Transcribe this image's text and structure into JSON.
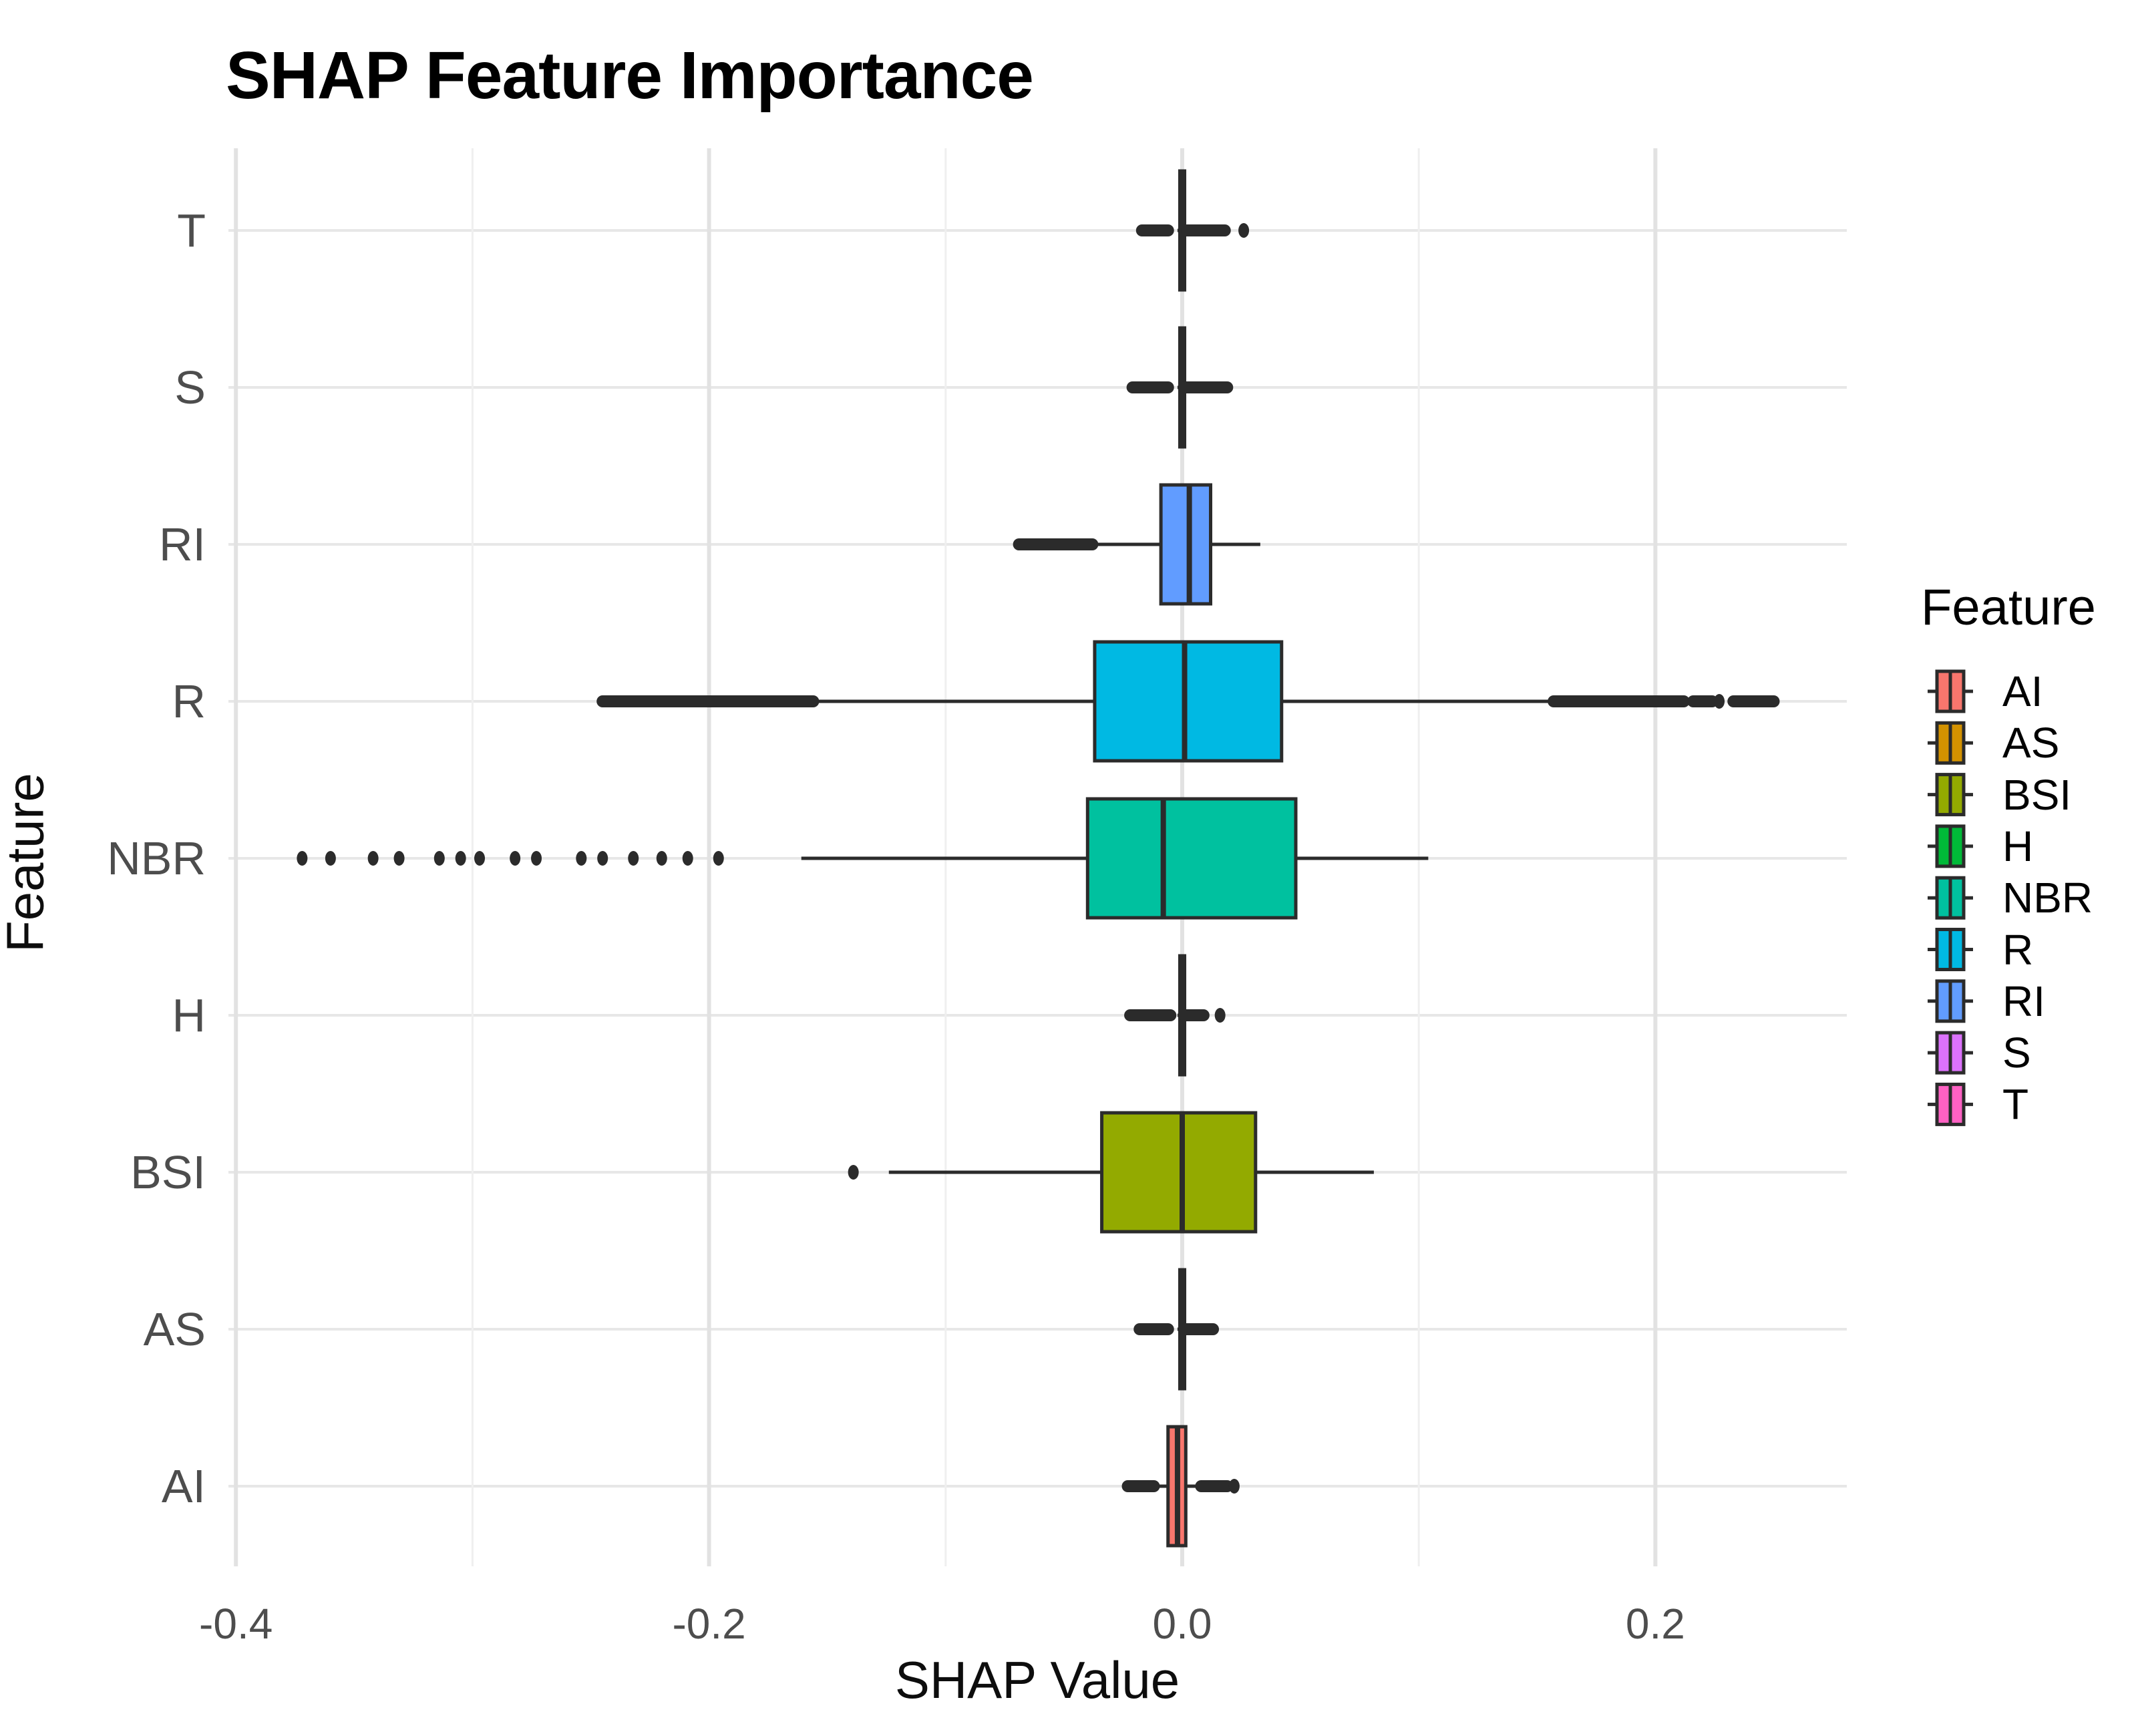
{
  "title": "SHAP Feature Importance",
  "axes": {
    "x_title": "SHAP Value",
    "y_title": "Feature",
    "x_ticks": [
      {
        "label": "-0.4",
        "value": -0.4
      },
      {
        "label": "-0.2",
        "value": -0.2
      },
      {
        "label": "0.0",
        "value": 0.0
      },
      {
        "label": "0.2",
        "value": 0.2
      }
    ],
    "y_ticks": [
      "T",
      "S",
      "RI",
      "R",
      "NBR",
      "H",
      "BSI",
      "AS",
      "AI"
    ]
  },
  "legend": {
    "title": "Feature",
    "entries": [
      {
        "label": "AI",
        "color": "#F8766D"
      },
      {
        "label": "AS",
        "color": "#D39200"
      },
      {
        "label": "BSI",
        "color": "#93AA00"
      },
      {
        "label": "H",
        "color": "#00BA38"
      },
      {
        "label": "NBR",
        "color": "#00C19F"
      },
      {
        "label": "R",
        "color": "#00B9E3"
      },
      {
        "label": "RI",
        "color": "#619CFF"
      },
      {
        "label": "S",
        "color": "#DB72FB"
      },
      {
        "label": "T",
        "color": "#FF61C3"
      }
    ]
  },
  "colors": {
    "box_outline": "#2b2b2b",
    "grid_major": "#e2e2e2",
    "grid_minor": "#efefef",
    "grid_row": "#e7e7e7",
    "tick_label": "#4d4d4d"
  },
  "chart_data": {
    "type": "boxplot-horizontal",
    "title": "SHAP Feature Importance",
    "xlabel": "SHAP Value",
    "ylabel": "Feature",
    "xlim": [
      -0.403,
      0.283
    ],
    "grid": true,
    "legend_position": "right",
    "x_major_gridlines": [
      -0.4,
      -0.2,
      0.0,
      0.2
    ],
    "x_minor_gridlines": [
      -0.3,
      -0.1,
      0.1
    ],
    "categories_top_to_bottom": [
      "T",
      "S",
      "RI",
      "R",
      "NBR",
      "H",
      "BSI",
      "AS",
      "AI"
    ],
    "series": [
      {
        "feature": "T",
        "color": "#FF61C3",
        "q1": -0.001,
        "median": 0.0,
        "q3": 0.001,
        "whisker_low": -0.002,
        "whisker_high": 0.002,
        "outlier_runs": [
          [
            -0.017,
            -0.006
          ],
          [
            0.002,
            0.018
          ]
        ],
        "outlier_points": [
          0.026
        ]
      },
      {
        "feature": "S",
        "color": "#DB72FB",
        "q1": -0.001,
        "median": 0.0,
        "q3": 0.001,
        "whisker_low": -0.002,
        "whisker_high": 0.002,
        "outlier_runs": [
          [
            -0.021,
            -0.006
          ],
          [
            0.001,
            0.019
          ]
        ],
        "outlier_points": []
      },
      {
        "feature": "RI",
        "color": "#619CFF",
        "q1": -0.009,
        "median": 0.003,
        "q3": 0.012,
        "whisker_low": -0.037,
        "whisker_high": 0.033,
        "outlier_runs": [
          [
            -0.069,
            -0.038
          ]
        ],
        "outlier_points": []
      },
      {
        "feature": "R",
        "color": "#00B9E3",
        "q1": -0.037,
        "median": 0.001,
        "q3": 0.042,
        "whisker_low": -0.155,
        "whisker_high": 0.157,
        "outlier_runs": [
          [
            -0.245,
            -0.156
          ],
          [
            0.157,
            0.212
          ],
          [
            0.216,
            0.224
          ],
          [
            0.233,
            0.25
          ]
        ],
        "outlier_points": [
          0.227
        ]
      },
      {
        "feature": "NBR",
        "color": "#00C19F",
        "q1": -0.04,
        "median": -0.008,
        "q3": 0.048,
        "whisker_low": -0.161,
        "whisker_high": 0.104,
        "outlier_runs": [],
        "outlier_points": [
          -0.372,
          -0.36,
          -0.342,
          -0.331,
          -0.314,
          -0.305,
          -0.297,
          -0.282,
          -0.273,
          -0.254,
          -0.245,
          -0.232,
          -0.22,
          -0.209,
          -0.196
        ]
      },
      {
        "feature": "H",
        "color": "#00BA38",
        "q1": -0.001,
        "median": 0.0,
        "q3": 0.001,
        "whisker_low": -0.002,
        "whisker_high": 0.002,
        "outlier_runs": [
          [
            -0.022,
            -0.005
          ],
          [
            0.001,
            0.009
          ]
        ],
        "outlier_points": [
          0.016
        ]
      },
      {
        "feature": "BSI",
        "color": "#93AA00",
        "q1": -0.034,
        "median": 0.0,
        "q3": 0.031,
        "whisker_low": -0.124,
        "whisker_high": 0.081,
        "outlier_runs": [],
        "outlier_points": [
          -0.139
        ]
      },
      {
        "feature": "AS",
        "color": "#D39200",
        "q1": -0.001,
        "median": 0.0,
        "q3": 0.001,
        "whisker_low": -0.002,
        "whisker_high": 0.002,
        "outlier_runs": [
          [
            -0.018,
            -0.006
          ],
          [
            0.001,
            0.013
          ]
        ],
        "outlier_points": []
      },
      {
        "feature": "AI",
        "color": "#F8766D",
        "q1": -0.006,
        "median": -0.002,
        "q3": 0.0015,
        "whisker_low": -0.012,
        "whisker_high": 0.008,
        "outlier_runs": [
          [
            -0.023,
            -0.012
          ],
          [
            0.008,
            0.019
          ]
        ],
        "outlier_points": [
          0.022
        ]
      }
    ]
  }
}
